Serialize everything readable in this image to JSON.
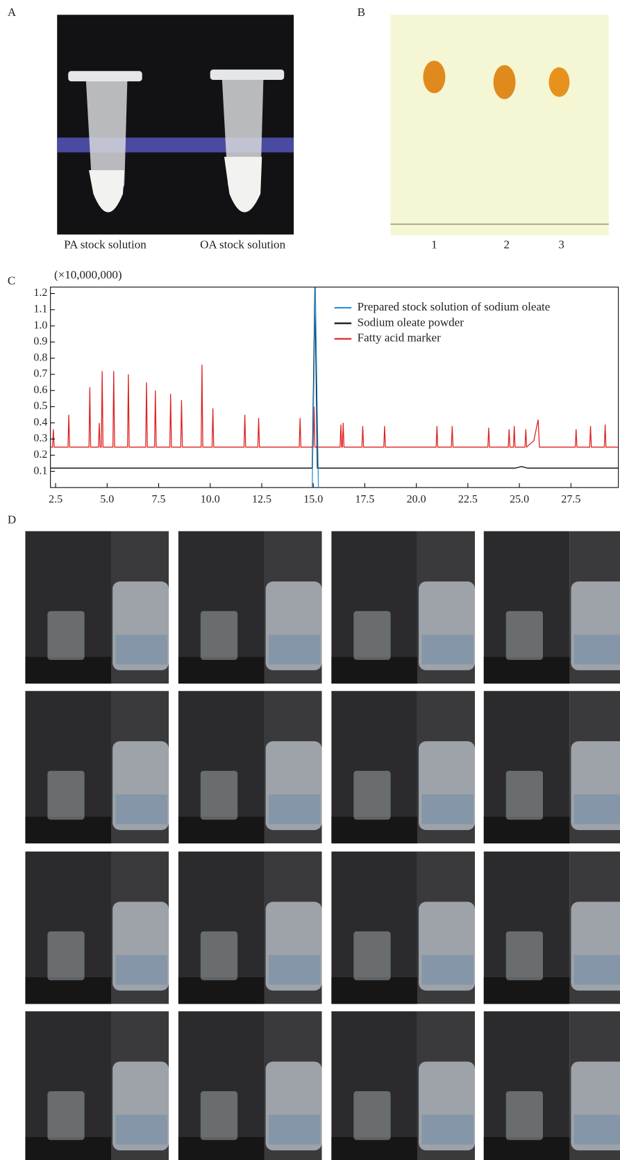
{
  "panels": {
    "a": {
      "label": "A",
      "captions": [
        "PA stock solution",
        "OA stock solution"
      ]
    },
    "b": {
      "label": "B",
      "lanes": [
        "1",
        "2",
        "3"
      ]
    },
    "c": {
      "label": "C"
    },
    "d": {
      "label": "D"
    }
  },
  "chart_data": {
    "type": "line",
    "y_unit": "(×10,000,000)",
    "xlim": [
      2.25,
      29.8
    ],
    "ylim": [
      0,
      1.24
    ],
    "xticks": [
      {
        "value": 2.5,
        "label": "2.5"
      },
      {
        "value": 5,
        "label": "5.0"
      },
      {
        "value": 7.5,
        "label": "7.5"
      },
      {
        "value": 10,
        "label": "10.0"
      },
      {
        "value": 12.5,
        "label": "12.5"
      },
      {
        "value": 15,
        "label": "15.0"
      },
      {
        "value": 17.5,
        "label": "17.5"
      },
      {
        "value": 20,
        "label": "20.0"
      },
      {
        "value": 22.5,
        "label": "22.5"
      },
      {
        "value": 25,
        "label": "25.0"
      },
      {
        "value": 27.5,
        "label": "27.5"
      }
    ],
    "yticks": [
      0.1,
      0.2,
      0.3,
      0.4,
      0.5,
      0.6,
      0.7,
      0.8,
      0.9,
      {
        "value": 1,
        "label": "1.0"
      },
      1.1,
      1.2
    ],
    "series": [
      {
        "name": "Prepared stock solution of sodium oleate",
        "color": "#2a8fd8",
        "x": [
          14.95,
          15.1,
          15.25
        ],
        "values": [
          0,
          1.24,
          0
        ]
      },
      {
        "name": "Sodium oleate powder",
        "color": "#000000",
        "x": [
          2.25,
          14.95,
          15.08,
          15.2,
          24.8,
          25.1,
          25.4,
          29.8
        ],
        "values": [
          0.12,
          0.12,
          1.24,
          0.12,
          0.12,
          0.13,
          0.12,
          0.12
        ]
      },
      {
        "name": "Fatty acid marker",
        "color": "#e02020",
        "x": [
          2.25,
          2.35,
          2.39,
          2.43,
          3.1,
          3.14,
          3.18,
          4.12,
          4.16,
          4.2,
          4.58,
          4.62,
          4.66,
          4.72,
          4.76,
          4.8,
          5.28,
          5.32,
          5.36,
          5.99,
          6.03,
          6.07,
          6.87,
          6.91,
          6.95,
          7.3,
          7.34,
          7.38,
          8.04,
          8.08,
          8.12,
          8.57,
          8.61,
          8.65,
          9.56,
          9.6,
          9.64,
          10.09,
          10.13,
          10.17,
          11.64,
          11.68,
          11.72,
          12.31,
          12.35,
          12.39,
          14.32,
          14.36,
          14.4,
          15.0,
          15.04,
          15.08,
          16.3,
          16.34,
          16.38,
          16.41,
          16.45,
          16.49,
          17.36,
          17.4,
          17.44,
          18.42,
          18.46,
          18.5,
          20.96,
          21.0,
          21.04,
          21.7,
          21.74,
          21.78,
          23.47,
          23.51,
          23.55,
          24.46,
          24.5,
          24.54,
          24.71,
          24.75,
          24.79,
          25.27,
          25.31,
          25.35,
          25.7,
          25.91,
          25.97,
          27.71,
          27.75,
          27.79,
          28.41,
          28.45,
          28.49,
          29.12,
          29.16,
          29.2,
          29.8
        ],
        "values": [
          0.25,
          0.25,
          0.36,
          0.25,
          0.25,
          0.45,
          0.25,
          0.25,
          0.62,
          0.25,
          0.25,
          0.4,
          0.25,
          0.25,
          0.72,
          0.25,
          0.25,
          0.72,
          0.25,
          0.25,
          0.7,
          0.25,
          0.25,
          0.65,
          0.25,
          0.25,
          0.6,
          0.25,
          0.25,
          0.58,
          0.25,
          0.25,
          0.54,
          0.25,
          0.25,
          0.76,
          0.25,
          0.25,
          0.49,
          0.25,
          0.25,
          0.45,
          0.25,
          0.25,
          0.43,
          0.25,
          0.25,
          0.43,
          0.25,
          0.25,
          0.5,
          0.25,
          0.25,
          0.39,
          0.25,
          0.25,
          0.4,
          0.25,
          0.25,
          0.38,
          0.25,
          0.25,
          0.38,
          0.25,
          0.25,
          0.38,
          0.25,
          0.25,
          0.38,
          0.25,
          0.25,
          0.37,
          0.25,
          0.25,
          0.36,
          0.25,
          0.25,
          0.38,
          0.25,
          0.25,
          0.36,
          0.25,
          0.29,
          0.42,
          0.25,
          0.25,
          0.36,
          0.25,
          0.25,
          0.38,
          0.25,
          0.25,
          0.39,
          0.25,
          0.25
        ]
      }
    ]
  }
}
